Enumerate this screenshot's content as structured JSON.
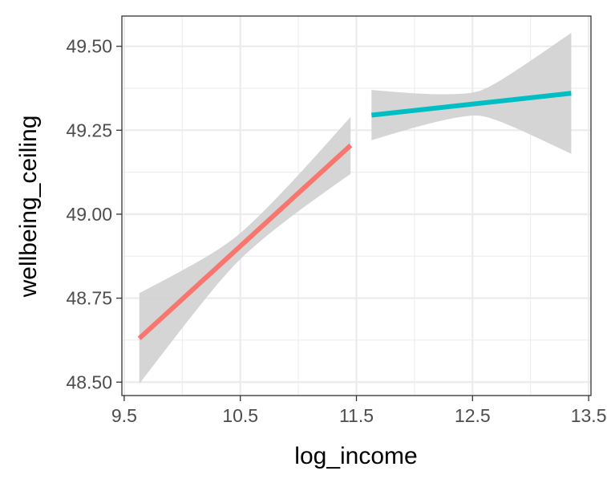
{
  "chart_data": {
    "type": "line",
    "xlabel": "log_income",
    "ylabel": "wellbeing_ceiling",
    "xlim": [
      9.48,
      13.52
    ],
    "ylim": [
      48.46,
      49.59
    ],
    "x_ticks": [
      9.5,
      10.5,
      11.5,
      12.5,
      13.5
    ],
    "x_tick_labels": [
      "9.5",
      "10.5",
      "11.5",
      "12.5",
      "13.5"
    ],
    "y_ticks": [
      48.5,
      48.75,
      49.0,
      49.25,
      49.5
    ],
    "y_tick_labels": [
      "48.50",
      "48.75",
      "49.00",
      "49.25",
      "49.50"
    ],
    "grid": true,
    "legend": "none",
    "series": [
      {
        "color": "#F8766D",
        "x": [
          9.63,
          11.45
        ],
        "y": [
          48.63,
          49.205
        ],
        "ci_lower": [
          48.5,
          49.125
        ],
        "ci_upper": [
          48.765,
          49.29
        ]
      },
      {
        "color": "#00BFC4",
        "x": [
          11.63,
          13.35
        ],
        "y": [
          49.295,
          49.36
        ],
        "ci_lower": [
          49.22,
          49.185
        ],
        "ci_upper": [
          49.37,
          49.54
        ]
      }
    ],
    "ci_color": "#d3d3d3"
  }
}
